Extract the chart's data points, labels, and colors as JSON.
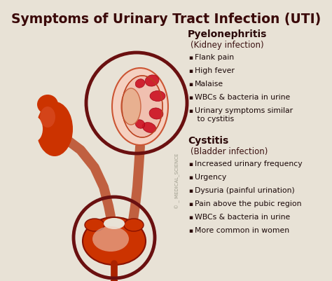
{
  "title": "Symptoms of Urinary Tract Infection (UTI)",
  "title_color": "#3a0808",
  "title_fontsize": 13.5,
  "bg_color": "#e8e2d6",
  "pyelonephritis_header": "Pyelonephritis",
  "pyelonephritis_sub": "(Kidney infection)",
  "pyelonephritis_symptoms": [
    "Flank pain",
    "High fever",
    "Malaise",
    "WBCs & bacteria in urine",
    "Urinary symptoms similar\n to cystitis"
  ],
  "cystitis_header": "Cystitis",
  "cystitis_sub": "(Bladder infection)",
  "cystitis_symptoms": [
    "Increased urinary frequency",
    "Urgency",
    "Dysuria (painful urination)",
    "Pain above the pubic region",
    "WBCs & bacteria in urine",
    "More common in women"
  ],
  "header_color": "#2a0808",
  "sub_color": "#3a1010",
  "symptom_color": "#1a0808",
  "bullet_color": "#2a0808",
  "watermark": "© _ MEDICAL_SCIENCE",
  "kidney_circle_color": "#6a1010",
  "bladder_circle_color": "#6a1010",
  "organ_fill": "#cc3300",
  "organ_light": "#e87060",
  "organ_dark": "#aa2200"
}
